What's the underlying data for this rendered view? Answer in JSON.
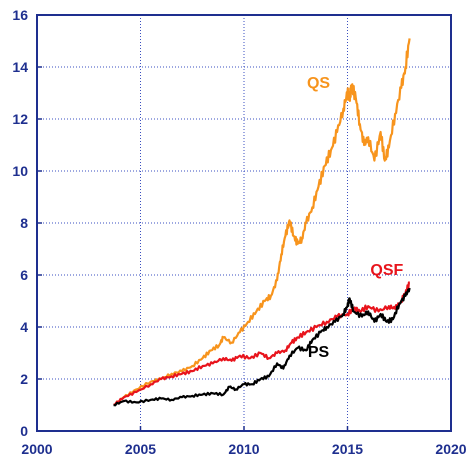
{
  "chart_data": {
    "type": "line",
    "title": "",
    "xlabel": "",
    "ylabel": "",
    "xlim": [
      2000,
      2020
    ],
    "ylim": [
      0,
      16
    ],
    "xticks": [
      2000,
      2005,
      2010,
      2015,
      2020
    ],
    "yticks": [
      0,
      2,
      4,
      6,
      8,
      10,
      12,
      14,
      16
    ],
    "grid": true,
    "legend": "none",
    "colors": {
      "axis": "#1e2f8f",
      "grid": "#3a4fc0",
      "tick_text": "#1e2f8f"
    },
    "series": [
      {
        "name": "QS",
        "color": "#f7941d",
        "label_pos": [
          2013.6,
          13.2
        ],
        "points": [
          [
            2003.7,
            1.0
          ],
          [
            2004.2,
            1.3
          ],
          [
            2004.8,
            1.6
          ],
          [
            2005.5,
            1.9
          ],
          [
            2006.0,
            2.0
          ],
          [
            2006.5,
            2.2
          ],
          [
            2007.0,
            2.3
          ],
          [
            2007.5,
            2.5
          ],
          [
            2008.0,
            2.8
          ],
          [
            2008.4,
            3.1
          ],
          [
            2008.8,
            3.3
          ],
          [
            2009.0,
            3.6
          ],
          [
            2009.4,
            3.4
          ],
          [
            2009.8,
            3.8
          ],
          [
            2010.2,
            4.2
          ],
          [
            2010.6,
            4.6
          ],
          [
            2011.0,
            5.0
          ],
          [
            2011.3,
            5.2
          ],
          [
            2011.6,
            5.8
          ],
          [
            2011.8,
            6.8
          ],
          [
            2012.0,
            7.5
          ],
          [
            2012.2,
            8.1
          ],
          [
            2012.4,
            7.5
          ],
          [
            2012.6,
            7.2
          ],
          [
            2012.8,
            7.4
          ],
          [
            2013.0,
            8.0
          ],
          [
            2013.3,
            8.6
          ],
          [
            2013.6,
            9.4
          ],
          [
            2013.9,
            10.2
          ],
          [
            2014.2,
            10.8
          ],
          [
            2014.5,
            11.5
          ],
          [
            2014.8,
            12.4
          ],
          [
            2015.0,
            13.0
          ],
          [
            2015.1,
            12.8
          ],
          [
            2015.2,
            13.3
          ],
          [
            2015.4,
            12.8
          ],
          [
            2015.6,
            11.8
          ],
          [
            2015.8,
            11.0
          ],
          [
            2016.0,
            11.3
          ],
          [
            2016.3,
            10.4
          ],
          [
            2016.6,
            11.5
          ],
          [
            2016.8,
            10.4
          ],
          [
            2017.0,
            10.9
          ],
          [
            2017.3,
            12.2
          ],
          [
            2017.6,
            13.2
          ],
          [
            2017.8,
            14.0
          ],
          [
            2018.0,
            15.1
          ]
        ]
      },
      {
        "name": "QSF",
        "color": "#e8141c",
        "label_pos": [
          2016.9,
          6.0
        ],
        "points": [
          [
            2003.7,
            1.0
          ],
          [
            2004.2,
            1.3
          ],
          [
            2004.8,
            1.5
          ],
          [
            2005.5,
            1.8
          ],
          [
            2006.0,
            2.0
          ],
          [
            2006.5,
            2.1
          ],
          [
            2007.0,
            2.2
          ],
          [
            2007.5,
            2.3
          ],
          [
            2008.0,
            2.5
          ],
          [
            2008.5,
            2.6
          ],
          [
            2009.0,
            2.8
          ],
          [
            2009.4,
            2.7
          ],
          [
            2009.8,
            2.9
          ],
          [
            2010.3,
            2.8
          ],
          [
            2010.8,
            3.0
          ],
          [
            2011.2,
            2.8
          ],
          [
            2011.6,
            3.0
          ],
          [
            2012.0,
            3.1
          ],
          [
            2012.3,
            3.4
          ],
          [
            2012.6,
            3.6
          ],
          [
            2013.0,
            3.8
          ],
          [
            2013.5,
            4.0
          ],
          [
            2014.0,
            4.2
          ],
          [
            2014.5,
            4.4
          ],
          [
            2015.0,
            4.5
          ],
          [
            2015.3,
            4.7
          ],
          [
            2015.6,
            4.6
          ],
          [
            2016.0,
            4.8
          ],
          [
            2016.5,
            4.6
          ],
          [
            2017.0,
            4.8
          ],
          [
            2017.3,
            4.7
          ],
          [
            2017.6,
            5.0
          ],
          [
            2017.8,
            5.3
          ],
          [
            2018.0,
            5.7
          ]
        ]
      },
      {
        "name": "PS",
        "color": "#000000",
        "label_pos": [
          2013.6,
          2.85
        ],
        "points": [
          [
            2003.7,
            1.0
          ],
          [
            2004.2,
            1.15
          ],
          [
            2004.8,
            1.1
          ],
          [
            2005.5,
            1.2
          ],
          [
            2006.0,
            1.25
          ],
          [
            2006.5,
            1.2
          ],
          [
            2007.0,
            1.3
          ],
          [
            2007.5,
            1.35
          ],
          [
            2008.0,
            1.4
          ],
          [
            2008.5,
            1.45
          ],
          [
            2009.0,
            1.4
          ],
          [
            2009.3,
            1.7
          ],
          [
            2009.6,
            1.6
          ],
          [
            2010.0,
            1.8
          ],
          [
            2010.4,
            1.8
          ],
          [
            2010.8,
            2.0
          ],
          [
            2011.2,
            2.1
          ],
          [
            2011.6,
            2.6
          ],
          [
            2011.9,
            2.4
          ],
          [
            2012.2,
            2.9
          ],
          [
            2012.6,
            3.2
          ],
          [
            2013.0,
            3.1
          ],
          [
            2013.3,
            3.5
          ],
          [
            2013.7,
            3.8
          ],
          [
            2014.0,
            4.0
          ],
          [
            2014.4,
            4.2
          ],
          [
            2014.8,
            4.5
          ],
          [
            2015.0,
            4.8
          ],
          [
            2015.1,
            5.1
          ],
          [
            2015.3,
            4.6
          ],
          [
            2015.7,
            4.4
          ],
          [
            2016.0,
            4.6
          ],
          [
            2016.3,
            4.2
          ],
          [
            2016.6,
            4.5
          ],
          [
            2016.9,
            4.2
          ],
          [
            2017.2,
            4.3
          ],
          [
            2017.5,
            4.9
          ],
          [
            2017.8,
            5.2
          ],
          [
            2018.0,
            5.5
          ]
        ]
      }
    ]
  }
}
